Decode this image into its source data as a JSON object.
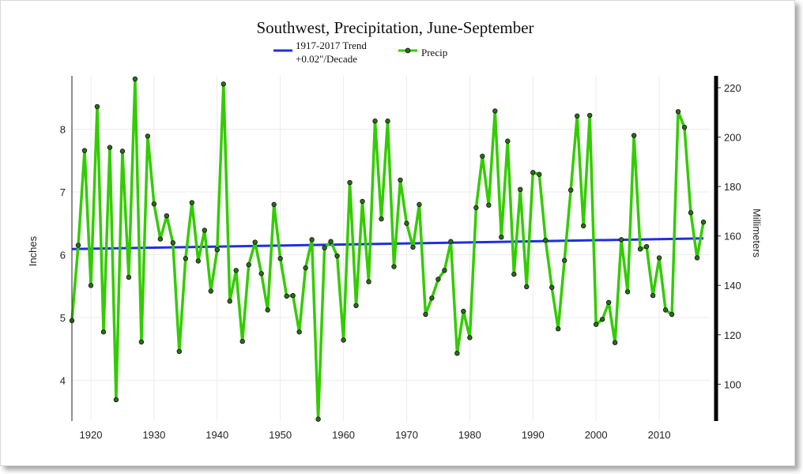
{
  "chart_data": {
    "type": "line",
    "title": "Southwest, Precipitation, June-September",
    "ylabel": "Inches",
    "y2label": "Millimeters",
    "xlim": [
      1917,
      2018
    ],
    "ylim": [
      3.35,
      8.85
    ],
    "xticks": [
      1920,
      1930,
      1940,
      1950,
      1960,
      1970,
      1980,
      1990,
      2000,
      2010
    ],
    "yticks": [
      4,
      5,
      6,
      7,
      8
    ],
    "y2ticks": [
      100,
      120,
      140,
      160,
      180,
      200,
      220
    ],
    "legend": [
      {
        "label_line1": "1917-2017 Trend",
        "label_line2": "+0.02\"/Decade",
        "color": "#1f2fe0"
      },
      {
        "label_line1": "Precip",
        "color": "#33cc00"
      }
    ],
    "trend": {
      "name": "1917-2017 Trend",
      "x": [
        1917,
        2017
      ],
      "y": [
        6.09,
        6.26
      ],
      "color": "#1f2fe0"
    },
    "series": [
      {
        "name": "Precip",
        "color": "#33cc00",
        "marker_color": "#2e6b1a",
        "x": [
          1917,
          1918,
          1919,
          1920,
          1921,
          1922,
          1923,
          1924,
          1925,
          1926,
          1927,
          1928,
          1929,
          1930,
          1931,
          1932,
          1933,
          1934,
          1935,
          1936,
          1937,
          1938,
          1939,
          1940,
          1941,
          1942,
          1943,
          1944,
          1945,
          1946,
          1947,
          1948,
          1949,
          1950,
          1951,
          1952,
          1953,
          1954,
          1955,
          1956,
          1957,
          1958,
          1959,
          1960,
          1961,
          1962,
          1963,
          1964,
          1965,
          1966,
          1967,
          1968,
          1969,
          1970,
          1971,
          1972,
          1973,
          1974,
          1975,
          1976,
          1977,
          1978,
          1979,
          1980,
          1981,
          1982,
          1983,
          1984,
          1985,
          1986,
          1987,
          1988,
          1989,
          1990,
          1991,
          1992,
          1993,
          1994,
          1995,
          1996,
          1997,
          1998,
          1999,
          2000,
          2001,
          2002,
          2003,
          2004,
          2005,
          2006,
          2007,
          2008,
          2009,
          2010,
          2011,
          2012,
          2013,
          2014,
          2015,
          2016,
          2017
        ],
        "y": [
          4.95,
          6.15,
          7.66,
          5.51,
          8.36,
          4.77,
          7.71,
          3.69,
          7.65,
          5.64,
          8.8,
          4.61,
          7.89,
          6.81,
          6.25,
          6.62,
          6.19,
          4.46,
          5.94,
          6.83,
          5.9,
          6.39,
          5.42,
          6.08,
          8.72,
          5.26,
          5.75,
          4.62,
          5.84,
          6.2,
          5.7,
          5.12,
          6.8,
          5.94,
          5.34,
          5.35,
          4.77,
          5.79,
          6.24,
          3.38,
          6.11,
          6.21,
          5.98,
          4.64,
          7.15,
          5.19,
          6.85,
          5.57,
          8.13,
          6.57,
          8.13,
          5.81,
          7.19,
          6.5,
          6.12,
          6.8,
          5.05,
          5.31,
          5.61,
          5.75,
          6.21,
          4.43,
          5.1,
          4.68,
          6.75,
          7.57,
          6.79,
          8.29,
          6.28,
          7.81,
          5.69,
          7.04,
          5.49,
          7.31,
          7.28,
          6.23,
          5.48,
          4.82,
          5.91,
          7.03,
          8.21,
          6.46,
          8.22,
          4.89,
          4.97,
          5.24,
          4.6,
          6.24,
          5.41,
          7.9,
          6.09,
          6.13,
          5.35,
          5.95,
          5.12,
          5.05,
          8.28,
          8.03,
          6.67,
          5.95,
          6.52
        ]
      }
    ]
  }
}
